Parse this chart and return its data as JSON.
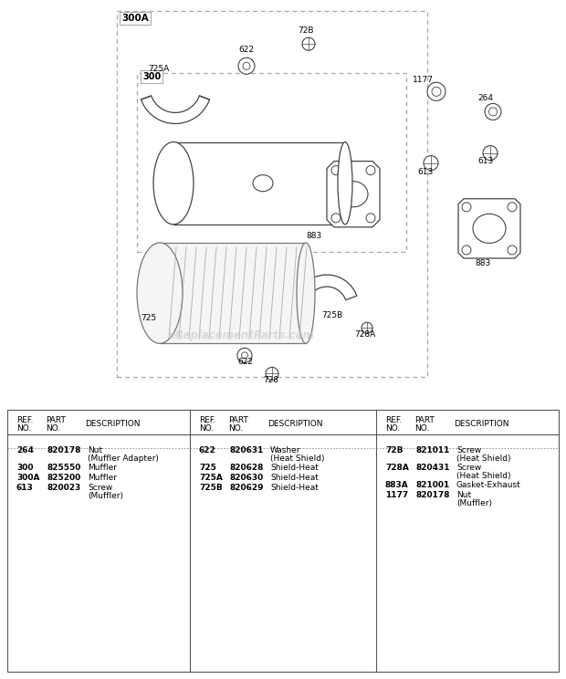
{
  "bg_color": "#ffffff",
  "watermark": "eReplacementParts.com",
  "lc": "#444444",
  "dc": "#aaaaaa",
  "fs": 6.5,
  "tf": 6.5,
  "bf": 6.5,
  "table_col1": [
    [
      "264",
      "820178",
      "Nut",
      "(Muffler Adapter)"
    ],
    [
      "300",
      "825550",
      "Muffler",
      ""
    ],
    [
      "300A",
      "825200",
      "Muffler",
      ""
    ],
    [
      "613",
      "820023",
      "Screw",
      "(Muffler)"
    ]
  ],
  "table_col2": [
    [
      "622",
      "820631",
      "Washer",
      "(Heat Shield)"
    ],
    [
      "725",
      "820628",
      "Shield-Heat",
      ""
    ],
    [
      "725A",
      "820630",
      "Shield-Heat",
      ""
    ],
    [
      "725B",
      "820629",
      "Shield-Heat",
      ""
    ]
  ],
  "table_col3": [
    [
      "72B",
      "821011",
      "Screw",
      "(Heat Shield)"
    ],
    [
      "728A",
      "820431",
      "Screw",
      "(Heat Shield)"
    ],
    [
      "883A",
      "821001",
      "Gasket-Exhaust",
      ""
    ],
    [
      "1177",
      "820178",
      "Nut",
      "(Muffler)"
    ]
  ]
}
